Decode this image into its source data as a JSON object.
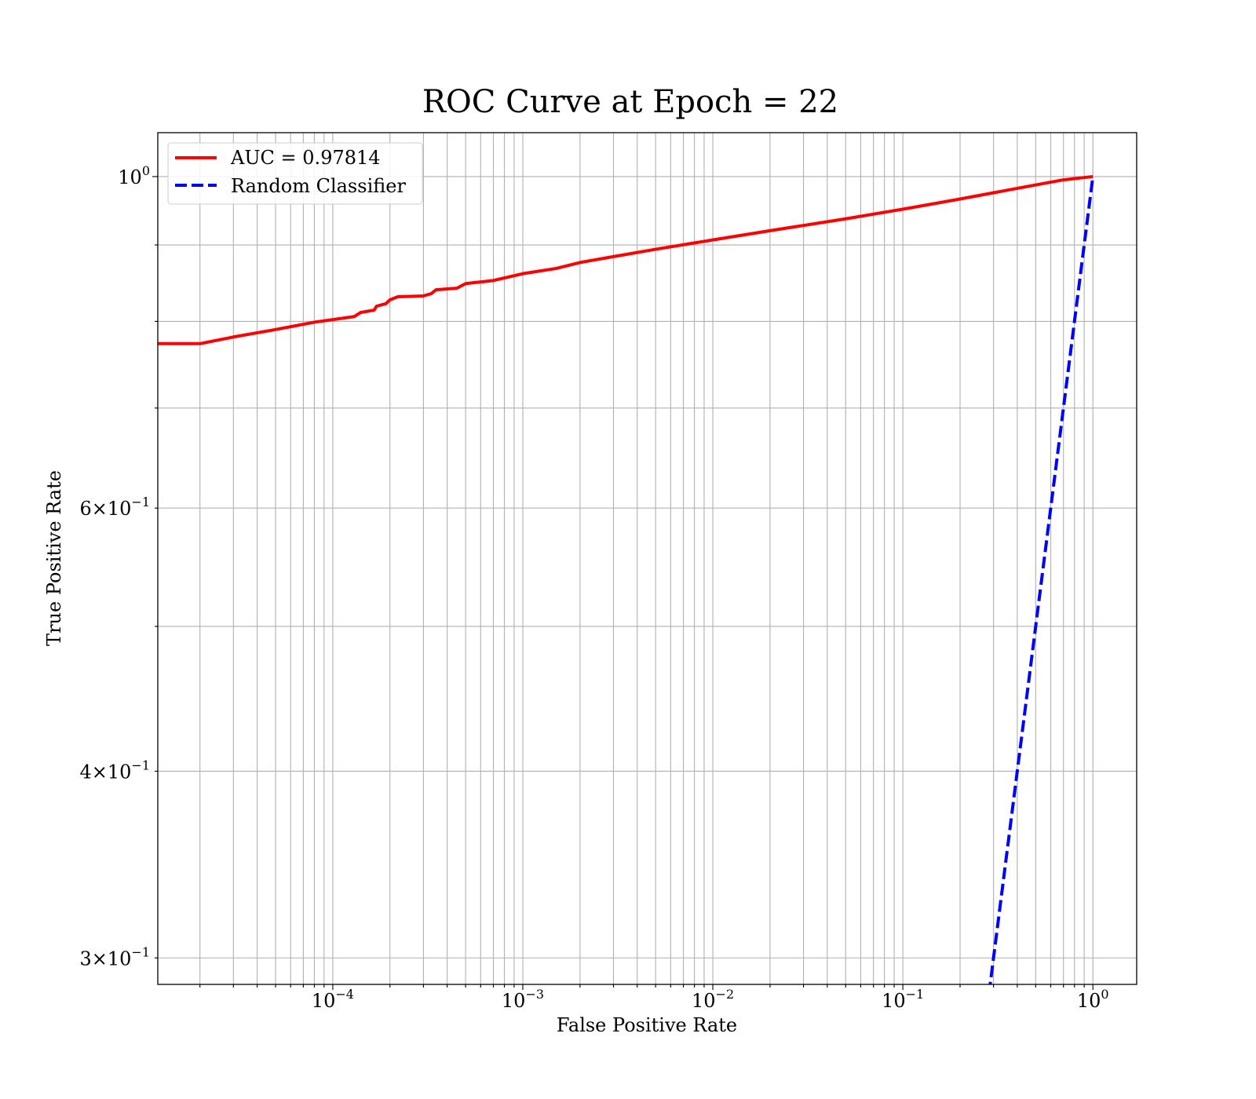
{
  "chart_data": {
    "type": "line",
    "title": "ROC Curve at Epoch = 22",
    "xlabel": "False Positive Rate",
    "ylabel": "True Positive Rate",
    "xscale": "log",
    "yscale": "log",
    "xlim": [
      1.2e-05,
      1.7
    ],
    "ylim": [
      0.288,
      1.07
    ],
    "grid": "both (major and minor)",
    "legend_placement": "upper left",
    "xticks": [
      {
        "value": 0.0001,
        "base": "10",
        "exp": "−4"
      },
      {
        "value": 0.001,
        "base": "10",
        "exp": "−3"
      },
      {
        "value": 0.01,
        "base": "10",
        "exp": "−2"
      },
      {
        "value": 0.1,
        "base": "10",
        "exp": "−1"
      },
      {
        "value": 1,
        "base": "10",
        "exp": "0"
      }
    ],
    "yticks": [
      {
        "value": 1.0,
        "base": "10",
        "exp": "0"
      },
      {
        "value": 0.6,
        "base": "6×10",
        "exp": "−1"
      },
      {
        "value": 0.4,
        "base": "4×10",
        "exp": "−1"
      },
      {
        "value": 0.3,
        "base": "3×10",
        "exp": "−1"
      }
    ],
    "series": [
      {
        "name": "AUC = 0.97814",
        "color": "#ff0000",
        "style": "solid",
        "points": [
          [
            1.2e-05,
            0.773
          ],
          [
            2e-05,
            0.773
          ],
          [
            3e-05,
            0.781
          ],
          [
            5e-05,
            0.79
          ],
          [
            8e-05,
            0.799
          ],
          [
            0.00013,
            0.806
          ],
          [
            0.00014,
            0.811
          ],
          [
            0.000165,
            0.814
          ],
          [
            0.00017,
            0.819
          ],
          [
            0.00019,
            0.822
          ],
          [
            0.0002,
            0.827
          ],
          [
            0.00022,
            0.831
          ],
          [
            0.0003,
            0.832
          ],
          [
            0.00033,
            0.835
          ],
          [
            0.00035,
            0.84
          ],
          [
            0.00045,
            0.842
          ],
          [
            0.0005,
            0.848
          ],
          [
            0.0007,
            0.852
          ],
          [
            0.001,
            0.861
          ],
          [
            0.0015,
            0.868
          ],
          [
            0.002,
            0.876
          ],
          [
            0.003,
            0.884
          ],
          [
            0.005,
            0.894
          ],
          [
            0.01,
            0.907
          ],
          [
            0.02,
            0.92
          ],
          [
            0.05,
            0.937
          ],
          [
            0.1,
            0.951
          ],
          [
            0.2,
            0.966
          ],
          [
            0.4,
            0.982
          ],
          [
            0.7,
            0.995
          ],
          [
            1.0,
            1.0
          ]
        ]
      },
      {
        "name": "Random Classifier",
        "color": "#0000ff",
        "style": "dashed",
        "points": [
          [
            0.27,
            0.27
          ],
          [
            1.0,
            1.0
          ]
        ]
      }
    ]
  }
}
